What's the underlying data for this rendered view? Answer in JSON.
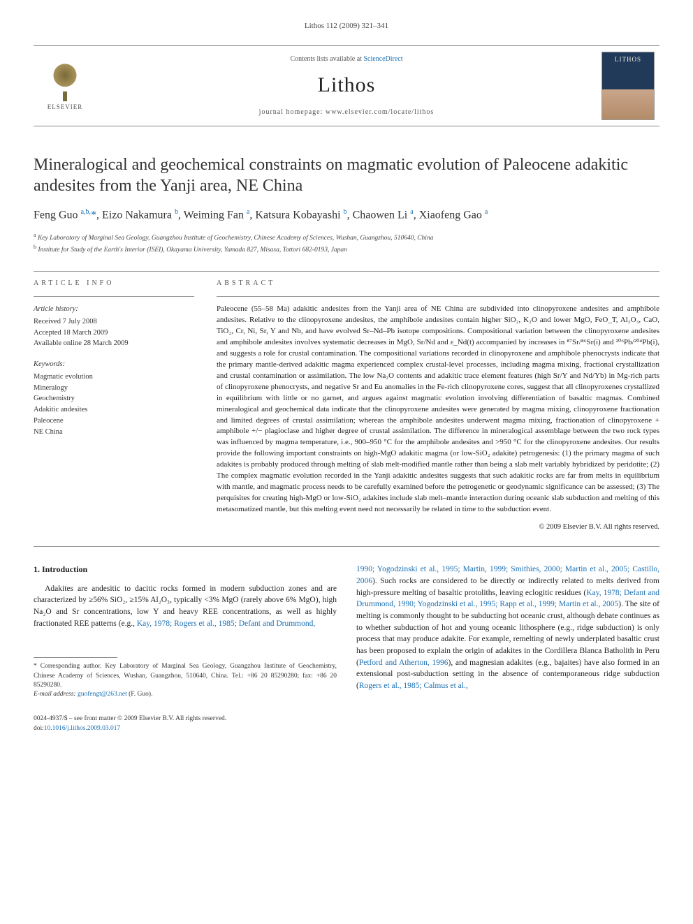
{
  "running_head": "Lithos 112 (2009) 321–341",
  "masthead": {
    "contents_prefix": "Contents lists available at ",
    "contents_link": "ScienceDirect",
    "journal": "Lithos",
    "homepage_label": "journal homepage: www.elsevier.com/locate/lithos",
    "publisher": "ELSEVIER"
  },
  "title": "Mineralogical and geochemical constraints on magmatic evolution of Paleocene adakitic andesites from the Yanji area, NE China",
  "authors_html": "Feng Guo <sup>a,b,</sup><span class='star'>*</span>, Eizo Nakamura <sup>b</sup>, Weiming Fan <sup>a</sup>, Katsura Kobayashi <sup>b</sup>, Chaowen Li <sup>a</sup>, Xiaofeng Gao <sup>a</sup>",
  "affiliations": [
    "a Key Laboratory of Marginal Sea Geology, Guangzhou Institute of Geochemistry, Chinese Academy of Sciences, Wushan, Guangzhou, 510640, China",
    "b Institute for Study of the Earth's Interior (ISEI), Okayama University, Yamada 827, Misasa, Tottori 682-0193, Japan"
  ],
  "article_info": {
    "label": "article info",
    "history_hdr": "Article history:",
    "history": [
      "Received 7 July 2008",
      "Accepted 18 March 2009",
      "Available online 28 March 2009"
    ],
    "keywords_hdr": "Keywords:",
    "keywords": [
      "Magmatic evolution",
      "Mineralogy",
      "Geochemistry",
      "Adakitic andesites",
      "Paleocene",
      "NE China"
    ]
  },
  "abstract": {
    "label": "abstract",
    "text": "Paleocene (55–58 Ma) adakitic andesites from the Yanji area of NE China are subdivided into clinopyroxene andesites and amphibole andesites. Relative to the clinopyroxene andesites, the amphibole andesites contain higher SiO₂, K₂O and lower MgO, FeO_T, Al₂O₃, CaO, TiO₂, Cr, Ni, Sr, Y and Nb, and have evolved Sr–Nd–Pb isotope compositions. Compositional variation between the clinopyroxene andesites and amphibole andesites involves systematic decreases in MgO, Sr/Nd and ε_Nd(t) accompanied by increases in ⁸⁷Sr/⁸⁶Sr(i) and ²⁰⁶Pb/²⁰⁴Pb(i), and suggests a role for crustal contamination. The compositional variations recorded in clinopyroxene and amphibole phenocrysts indicate that the primary mantle-derived adakitic magma experienced complex crustal-level processes, including magma mixing, fractional crystallization and crustal contamination or assimilation. The low Na₂O contents and adakitic trace element features (high Sr/Y and Nd/Yb) in Mg-rich parts of clinopyroxene phenocrysts, and negative Sr and Eu anomalies in the Fe-rich clinopyroxene cores, suggest that all clinopyroxenes crystallized in equilibrium with little or no garnet, and argues against magmatic evolution involving differentiation of basaltic magmas. Combined mineralogical and geochemical data indicate that the clinopyroxene andesites were generated by magma mixing, clinopyroxene fractionation and limited degrees of crustal assimilation; whereas the amphibole andesites underwent magma mixing, fractionation of clinopyroxene + amphibole +/− plagioclase and higher degree of crustal assimilation. The difference in mineralogical assemblage between the two rock types was influenced by magma temperature, i.e., 900–950 °C for the amphibole andesites and >950 °C for the clinopyroxene andesites. Our results provide the following important constraints on high-MgO adakitic magma (or low-SiO₂ adakite) petrogenesis: (1) the primary magma of such adakites is probably produced through melting of slab melt-modified mantle rather than being a slab melt variably hybridized by peridotite; (2) The complex magmatic evolution recorded in the Yanji adakitic andesites suggests that such adakitic rocks are far from melts in equilibrium with mantle, and magmatic process needs to be carefully examined before the petrogenetic or geodynamic significance can be assessed; (3) The perquisites for creating high-MgO or low-SiO₂ adakites include slab melt–mantle interaction during oceanic slab subduction and melting of this metasomatized mantle, but this melting event need not necessarily be related in time to the subduction event.",
    "copyright": "© 2009 Elsevier B.V. All rights reserved."
  },
  "intro": {
    "heading": "1. Introduction",
    "col1_html": "Adakites are andesitic to dacitic rocks formed in modern subduction zones and are characterized by ≥56% SiO₂, ≥15% Al₂O₃, typically <3% MgO (rarely above 6% MgO), high Na₂O and Sr concentrations, low Y and heavy REE concentrations, as well as highly fractionated REE patterns (e.g., <a href='#'>Kay, 1978; Rogers et al., 1985; Defant and Drummond,</a>",
    "col2_html": "<a href='#'>1990; Yogodzinski et al., 1995; Martin, 1999; Smithies, 2000; Martin et al., 2005; Castillo, 2006</a>). Such rocks are considered to be directly or indirectly related to melts derived from high-pressure melting of basaltic protoliths, leaving eclogitic residues (<a href='#'>Kay, 1978; Defant and Drummond, 1990; Yogodzinski et al., 1995; Rapp et al., 1999; Martin et al., 2005</a>). The site of melting is commonly thought to be subducting hot oceanic crust, although debate continues as to whether subduction of hot and young oceanic lithosphere (e.g., ridge subduction) is only process that may produce adakite. For example, remelting of newly underplated basaltic crust has been proposed to explain the origin of adakites in the Cordillera Blanca Batholith in Peru (<a href='#'>Petford and Atherton, 1996</a>), and magnesian adakites (e.g., bajaites) have also formed in an extensional post-subduction setting in the absence of contemporaneous ridge subduction (<a href='#'>Rogers et al., 1985; Calmus et al.,</a>"
  },
  "footnotes": {
    "corr": "* Corresponding author. Key Laboratory of Marginal Sea Geology, Guangzhou Institute of Geochemistry, Chinese Academy of Sciences, Wushan, Guangzhou, 510640, China. Tel.: +86 20 85290280; fax: +86 20 85290280.",
    "email_label": "E-mail address: ",
    "email": "guofengt@263.net",
    "email_suffix": " (F. Guo)."
  },
  "footer": {
    "line1": "0024-4937/$ – see front matter © 2009 Elsevier B.V. All rights reserved.",
    "doi_label": "doi:",
    "doi": "10.1016/j.lithos.2009.03.017"
  },
  "colors": {
    "link": "#1a6fb3",
    "text": "#222222",
    "rule": "#999999"
  }
}
